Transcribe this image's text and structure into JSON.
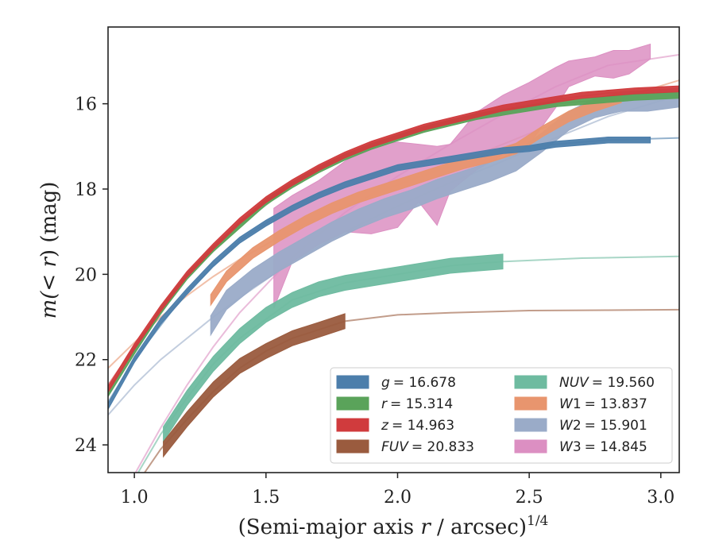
{
  "chart_data": {
    "type": "line",
    "xlabel": "(Semi-major axis r / arcsec)",
    "xlabel_var": "r",
    "xlabel_exp": "1/4",
    "ylabel_prefix": "m(",
    "ylabel_lt": "< ",
    "ylabel_var": "r",
    "ylabel_suffix": ") (mag)",
    "xlim": [
      0.9,
      3.07
    ],
    "ylim": [
      24.65,
      14.2
    ],
    "y_inverted": true,
    "grid": false,
    "legend_position": "lower-right",
    "xticks": [
      "1.0",
      "1.5",
      "2.0",
      "2.5",
      "3.0"
    ],
    "yticks": [
      "16",
      "18",
      "20",
      "22",
      "24"
    ],
    "series": [
      {
        "name": "g",
        "legend_label": "g = 16.678",
        "legend_var": "g",
        "legend_value": "= 16.678",
        "color": "#4c7eab",
        "band_width": 0.14,
        "data_x": [
          0.9,
          1.0,
          1.1,
          1.2,
          1.3,
          1.4,
          1.5,
          1.6,
          1.7,
          1.8,
          1.9,
          2.0,
          2.1,
          2.2,
          2.3,
          2.4,
          2.5,
          2.6,
          2.7,
          2.8,
          2.96
        ],
        "data_y": [
          23.1,
          22.0,
          21.1,
          20.4,
          19.75,
          19.2,
          18.8,
          18.45,
          18.15,
          17.9,
          17.7,
          17.5,
          17.4,
          17.3,
          17.2,
          17.1,
          17.05,
          16.95,
          16.9,
          16.85,
          16.85
        ],
        "model_x": [
          0.9,
          1.0,
          1.2,
          1.4,
          1.6,
          1.8,
          2.0,
          2.2,
          2.4,
          2.6,
          2.8,
          3.07
        ],
        "model_y": [
          23.0,
          22.0,
          20.4,
          19.2,
          18.4,
          17.85,
          17.5,
          17.25,
          17.1,
          16.95,
          16.85,
          16.8
        ]
      },
      {
        "name": "r",
        "legend_label": "r = 15.314",
        "legend_var": "r",
        "legend_value": "= 15.314",
        "color": "#5aa35a",
        "band_width": 0.14,
        "data_x": [
          0.9,
          1.0,
          1.1,
          1.2,
          1.3,
          1.4,
          1.5,
          1.6,
          1.7,
          1.8,
          1.9,
          2.0,
          2.1,
          2.2,
          2.3,
          2.4,
          2.5,
          2.6,
          2.7,
          2.8,
          2.9,
          3.07
        ],
        "data_y": [
          22.8,
          21.8,
          20.85,
          20.05,
          19.4,
          18.85,
          18.3,
          17.9,
          17.55,
          17.25,
          17.0,
          16.8,
          16.6,
          16.45,
          16.3,
          16.2,
          16.1,
          16.0,
          15.95,
          15.9,
          15.85,
          15.8
        ],
        "model_x": [
          0.9,
          1.0,
          1.2,
          1.4,
          1.6,
          1.8,
          2.0,
          2.2,
          2.4,
          2.6,
          2.8,
          3.07
        ],
        "model_y": [
          22.7,
          21.8,
          20.05,
          18.85,
          17.9,
          17.25,
          16.8,
          16.45,
          16.2,
          16.0,
          15.9,
          15.8
        ]
      },
      {
        "name": "z",
        "legend_label": "z = 14.963",
        "legend_var": "z",
        "legend_value": "= 14.963",
        "color": "#d03b3d",
        "band_width": 0.14,
        "data_x": [
          0.9,
          1.0,
          1.1,
          1.2,
          1.3,
          1.4,
          1.5,
          1.6,
          1.7,
          1.8,
          1.9,
          2.0,
          2.1,
          2.2,
          2.3,
          2.4,
          2.5,
          2.6,
          2.7,
          2.8,
          2.9,
          3.07
        ],
        "data_y": [
          22.7,
          21.7,
          20.8,
          20.0,
          19.35,
          18.75,
          18.25,
          17.85,
          17.5,
          17.2,
          16.95,
          16.75,
          16.55,
          16.4,
          16.25,
          16.1,
          16.0,
          15.9,
          15.8,
          15.75,
          15.7,
          15.65
        ],
        "model_x": [
          0.9,
          1.0,
          1.2,
          1.4,
          1.6,
          1.8,
          2.0,
          2.2,
          2.4,
          2.6,
          2.8,
          3.07
        ],
        "model_y": [
          22.6,
          21.7,
          20.0,
          18.75,
          17.85,
          17.2,
          16.75,
          16.4,
          16.1,
          15.9,
          15.75,
          15.65
        ]
      },
      {
        "name": "FUV",
        "legend_label": "FUV = 20.833",
        "legend_var": "FUV",
        "legend_value": "= 20.833",
        "color": "#9a5b3e",
        "band_width": 0.35,
        "data_x": [
          1.11,
          1.2,
          1.3,
          1.4,
          1.5,
          1.6,
          1.7,
          1.8
        ],
        "data_y": [
          24.1,
          23.4,
          22.7,
          22.15,
          21.8,
          21.5,
          21.3,
          21.1
        ],
        "model_x": [
          0.9,
          1.0,
          1.1,
          1.2,
          1.3,
          1.4,
          1.5,
          1.6,
          1.8,
          2.0,
          2.2,
          2.5,
          2.8,
          3.07
        ],
        "model_y": [
          26.2,
          25.0,
          24.1,
          23.4,
          22.75,
          22.2,
          21.8,
          21.5,
          21.1,
          20.95,
          20.9,
          20.85,
          20.84,
          20.83
        ]
      },
      {
        "name": "NUV",
        "legend_label": "NUV = 19.560",
        "legend_var": "NUV",
        "legend_value": "= 19.560",
        "color": "#6ebba0",
        "band_width": 0.35,
        "data_x": [
          1.11,
          1.2,
          1.3,
          1.4,
          1.5,
          1.6,
          1.7,
          1.8,
          1.9,
          2.0,
          2.1,
          2.2,
          2.3,
          2.4
        ],
        "data_y": [
          23.75,
          22.9,
          22.1,
          21.45,
          20.95,
          20.6,
          20.35,
          20.2,
          20.1,
          20.0,
          19.9,
          19.8,
          19.75,
          19.7
        ],
        "model_x": [
          0.9,
          1.0,
          1.1,
          1.2,
          1.3,
          1.4,
          1.6,
          1.8,
          2.0,
          2.2,
          2.4,
          2.7,
          3.07
        ],
        "model_y": [
          26.0,
          24.8,
          23.75,
          22.9,
          22.1,
          21.5,
          20.6,
          20.2,
          20.0,
          19.8,
          19.7,
          19.62,
          19.58
        ]
      },
      {
        "name": "W1",
        "legend_label": "W1 = 13.837",
        "legend_var": "W",
        "legend_sub": "1",
        "legend_value": "= 13.837",
        "color": "#e8956e",
        "band_width": 0.25,
        "data_x": [
          1.29,
          1.35,
          1.45,
          1.55,
          1.65,
          1.75,
          1.85,
          1.95,
          2.05,
          2.15,
          2.25,
          2.35,
          2.45,
          2.55,
          2.65,
          2.75,
          2.85
        ],
        "data_y": [
          20.6,
          20.05,
          19.5,
          19.1,
          18.75,
          18.45,
          18.2,
          18.0,
          17.8,
          17.6,
          17.4,
          17.25,
          17.05,
          16.65,
          16.3,
          16.05,
          15.85
        ],
        "model_x": [
          0.9,
          1.0,
          1.1,
          1.2,
          1.3,
          1.4,
          1.6,
          1.8,
          2.0,
          2.2,
          2.4,
          2.6,
          2.8,
          3.07
        ],
        "model_y": [
          22.2,
          21.6,
          21.0,
          20.5,
          20.05,
          19.65,
          18.95,
          18.4,
          17.9,
          17.45,
          16.95,
          16.45,
          15.95,
          15.45
        ]
      },
      {
        "name": "W2",
        "legend_label": "W2 = 15.901",
        "legend_var": "W",
        "legend_sub": "2",
        "legend_value": "= 15.901",
        "color": "#9aabc8",
        "band_width": 0.45,
        "data_x": [
          1.29,
          1.35,
          1.45,
          1.55,
          1.65,
          1.75,
          1.85,
          1.95,
          2.05,
          2.15,
          2.25,
          2.35,
          2.45,
          2.55,
          2.65,
          2.75,
          2.85,
          2.95,
          3.07
        ],
        "data_y": [
          21.2,
          20.6,
          20.1,
          19.7,
          19.35,
          19.0,
          18.7,
          18.45,
          18.25,
          18.0,
          17.8,
          17.6,
          17.35,
          16.9,
          16.4,
          16.1,
          15.95,
          15.95,
          15.85
        ],
        "model_x": [
          0.9,
          1.0,
          1.1,
          1.2,
          1.3,
          1.4,
          1.6,
          1.8,
          2.0,
          2.2,
          2.4,
          2.6,
          2.8,
          3.07
        ],
        "model_y": [
          23.3,
          22.6,
          22.0,
          21.5,
          21.0,
          20.55,
          19.7,
          19.0,
          18.4,
          17.85,
          17.35,
          16.8,
          16.3,
          15.8
        ]
      },
      {
        "name": "W3",
        "legend_label": "W3 = 14.845",
        "legend_var": "W",
        "legend_sub": "3",
        "legend_value": "= 14.845",
        "color": "#dc8fc2",
        "band_x": [
          1.53,
          1.6,
          1.7,
          1.8,
          1.9,
          2.0,
          2.08,
          2.15,
          2.2,
          2.3,
          2.4,
          2.5,
          2.6,
          2.65,
          2.75,
          2.82,
          2.88,
          2.96
        ],
        "band_upper": [
          18.45,
          18.15,
          17.8,
          17.35,
          17.0,
          16.9,
          16.95,
          17.0,
          16.95,
          16.2,
          15.8,
          15.5,
          15.15,
          15.0,
          14.9,
          14.75,
          14.75,
          14.6
        ],
        "band_lower": [
          20.8,
          19.7,
          19.3,
          19.0,
          19.05,
          18.9,
          18.3,
          18.85,
          18.05,
          17.55,
          17.2,
          16.95,
          16.1,
          15.6,
          15.35,
          15.4,
          15.3,
          14.95
        ],
        "model_x": [
          0.9,
          1.0,
          1.1,
          1.2,
          1.3,
          1.4,
          1.6,
          1.8,
          2.0,
          2.2,
          2.4,
          2.6,
          2.8,
          3.07
        ],
        "model_y": [
          26.0,
          24.7,
          23.6,
          22.6,
          21.7,
          20.9,
          19.6,
          18.55,
          17.7,
          16.95,
          16.25,
          15.6,
          15.1,
          14.85
        ]
      }
    ]
  }
}
